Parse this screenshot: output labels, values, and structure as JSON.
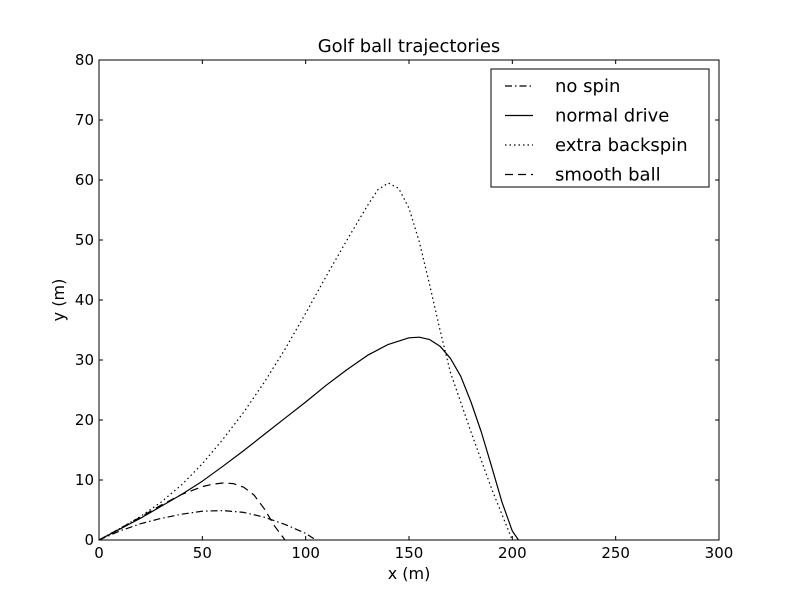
{
  "chart_data": {
    "type": "line",
    "title": "Golf ball trajectories",
    "xlabel": "x (m)",
    "ylabel": "y (m)",
    "xlim": [
      0,
      300
    ],
    "ylim": [
      0,
      80
    ],
    "xticks": [
      0,
      50,
      100,
      150,
      200,
      250,
      300
    ],
    "yticks": [
      0,
      10,
      20,
      30,
      40,
      50,
      60,
      70,
      80
    ],
    "xtick_labels": [
      "0",
      "50",
      "100",
      "150",
      "200",
      "250",
      "300"
    ],
    "ytick_labels": [
      "0",
      "10",
      "20",
      "30",
      "40",
      "50",
      "60",
      "70",
      "80"
    ],
    "grid": false,
    "legend": {
      "position": "top-right"
    },
    "series": [
      {
        "name": "no spin",
        "style": "dashdot",
        "color": "#000000",
        "x": [
          0,
          10,
          20,
          30,
          40,
          50,
          60,
          70,
          80,
          90,
          100,
          105
        ],
        "y": [
          0,
          1.5,
          2.7,
          3.6,
          4.3,
          4.8,
          4.9,
          4.6,
          3.8,
          2.6,
          1.1,
          0
        ]
      },
      {
        "name": "normal drive",
        "style": "solid",
        "color": "#000000",
        "x": [
          0,
          10,
          20,
          30,
          40,
          50,
          60,
          70,
          80,
          90,
          100,
          110,
          120,
          130,
          140,
          150,
          155,
          160,
          165,
          170,
          175,
          180,
          185,
          190,
          195,
          200,
          203
        ],
        "y": [
          0,
          1.8,
          3.6,
          5.6,
          7.6,
          9.8,
          12.3,
          14.9,
          17.6,
          20.3,
          23.0,
          25.8,
          28.4,
          30.8,
          32.6,
          33.7,
          33.8,
          33.4,
          32.3,
          30.3,
          27.3,
          23.0,
          18.0,
          12.2,
          6.3,
          1.5,
          0
        ]
      },
      {
        "name": "extra backspin",
        "style": "dotted",
        "color": "#000000",
        "x": [
          0,
          10,
          20,
          30,
          40,
          50,
          60,
          70,
          80,
          90,
          100,
          110,
          120,
          130,
          135,
          140,
          145,
          150,
          155,
          160,
          165,
          170,
          180,
          190,
          200
        ],
        "y": [
          0,
          1.9,
          3.9,
          6.3,
          9.2,
          12.7,
          16.8,
          21.3,
          26.3,
          31.8,
          37.8,
          44.0,
          50.0,
          55.8,
          58.4,
          59.5,
          58.6,
          55.3,
          49.7,
          42.5,
          35.0,
          28.0,
          18.0,
          8.5,
          0
        ]
      },
      {
        "name": "smooth ball",
        "style": "dashed",
        "color": "#000000",
        "x": [
          0,
          10,
          20,
          30,
          40,
          50,
          55,
          60,
          65,
          70,
          75,
          80,
          85,
          90
        ],
        "y": [
          0,
          1.9,
          3.8,
          5.8,
          7.6,
          8.9,
          9.3,
          9.5,
          9.4,
          8.8,
          7.5,
          5.2,
          2.3,
          0
        ]
      }
    ]
  }
}
